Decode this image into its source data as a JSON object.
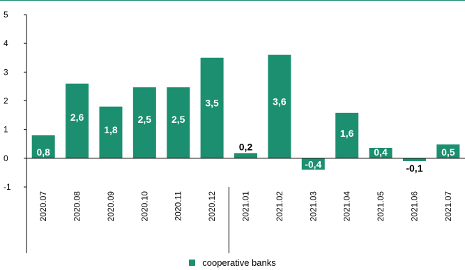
{
  "chart_data": {
    "type": "bar",
    "title": "",
    "categories": [
      "2020.07",
      "2020.08",
      "2020.09",
      "2020.10",
      "2020.11",
      "2020.12",
      "2021.01",
      "2021.02",
      "2021.03",
      "2021.04",
      "2021.05",
      "2021.06",
      "2021.07"
    ],
    "series": [
      {
        "name": "cooperative banks",
        "values": [
          0.8,
          2.6,
          1.8,
          2.47,
          2.47,
          3.5,
          0.18,
          3.6,
          -0.4,
          1.58,
          0.36,
          -0.1,
          0.48
        ],
        "labels": [
          "0,8",
          "2,6",
          "1,8",
          "2,5",
          "2,5",
          "3,5",
          "0,2",
          "3,6",
          "-0,4",
          "1,6",
          "0,4",
          "-0,1",
          "0,5"
        ]
      }
    ],
    "ylim": [
      -1,
      5
    ],
    "yticks": [
      "-1",
      "0",
      "1",
      "2",
      "3",
      "4",
      "5"
    ],
    "xlabel": "",
    "ylabel": "",
    "legend_position": "bottom",
    "grid": false,
    "colors": {
      "bar": "#1b8f6f",
      "frame": "#1a8a6e"
    }
  }
}
